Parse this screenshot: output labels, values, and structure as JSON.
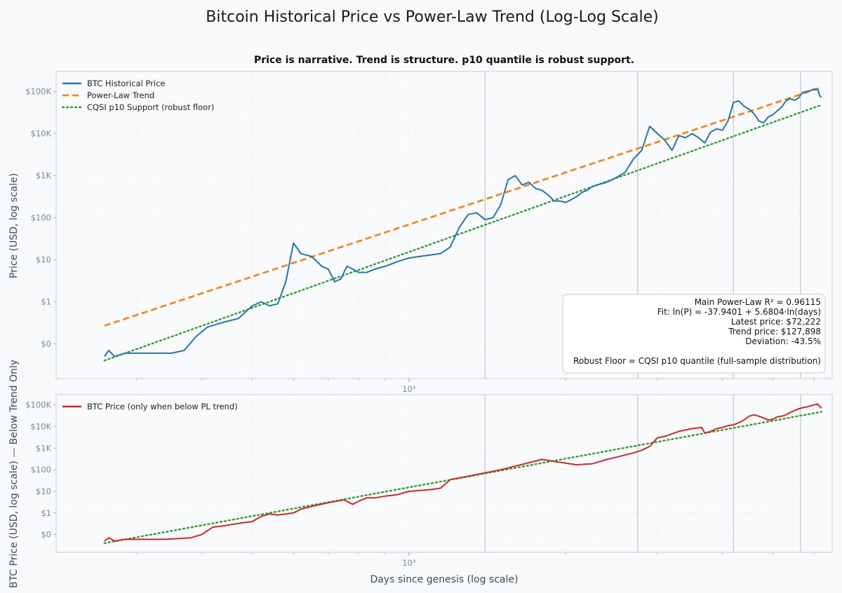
{
  "colors": {
    "btc": "#1f77b4",
    "trend": "#ff7f0e",
    "support": "#2ca02c",
    "below": "#d62728",
    "grid": "#e6e9ee",
    "spine": "#c9ced6",
    "vline": "#c0c5cc"
  },
  "chart_data": [
    {
      "type": "line",
      "title": "Bitcoin Historical Price vs Power-Law Trend (Log-Log Scale)",
      "subtitle": "Price is narrative. Trend is structure. p10 quantile is robust support.",
      "xscale": "log",
      "yscale": "log",
      "xlim": [
        210,
        6500
      ],
      "ylim": [
        0.015,
        300000
      ],
      "ylabel": "Price (USD, log scale)",
      "ytick_values": [
        0.1,
        1,
        10,
        100,
        1000,
        10000,
        100000
      ],
      "ytick_labels": [
        "$0",
        "$1",
        "$10",
        "$100",
        "$1K",
        "$10K",
        "$100K"
      ],
      "xtick_values": [
        1000
      ],
      "xtick_labels": [
        "10³"
      ],
      "vlines": [
        1400,
        2750,
        4200,
        5650
      ],
      "legend": [
        {
          "label": "BTC Historical Price",
          "style": "solid",
          "color_key": "btc"
        },
        {
          "label": "Power-Law Trend",
          "style": "dashed",
          "color_key": "trend"
        },
        {
          "label": "CQSI p10 Support (robust floor)",
          "style": "dotted",
          "color_key": "support"
        }
      ],
      "annotation_lines": [
        "Main Power-Law  R² = 0.96115",
        "Fit: ln(P) = -37.9401 + 5.6804·ln(days)",
        "Latest price: $72,222",
        "Trend price: $127,898",
        "Deviation: -43.5%",
        "",
        "Robust Floor = CQSI p10 quantile (full-sample distribution)"
      ],
      "trend": {
        "x": [
          260,
          6200
        ],
        "y": [
          0.27,
          125000
        ]
      },
      "support": {
        "x": [
          260,
          6200
        ],
        "y": [
          0.04,
          48000
        ]
      },
      "series": [
        {
          "name": "BTC Historical Price",
          "color_key": "btc",
          "x": [
            260,
            265,
            272,
            285,
            300,
            320,
            330,
            340,
            350,
            370,
            390,
            410,
            430,
            450,
            470,
            500,
            520,
            540,
            560,
            580,
            600,
            620,
            650,
            680,
            700,
            720,
            740,
            760,
            780,
            800,
            830,
            860,
            900,
            950,
            1000,
            1050,
            1100,
            1150,
            1200,
            1250,
            1300,
            1350,
            1400,
            1450,
            1500,
            1550,
            1600,
            1650,
            1700,
            1750,
            1800,
            1850,
            1900,
            1950,
            2000,
            2050,
            2100,
            2150,
            2200,
            2250,
            2300,
            2400,
            2500,
            2600,
            2700,
            2800,
            2900,
            3000,
            3100,
            3200,
            3300,
            3400,
            3500,
            3600,
            3700,
            3800,
            3900,
            4000,
            4100,
            4200,
            4300,
            4400,
            4500,
            4600,
            4700,
            4800,
            4900,
            5000,
            5100,
            5200,
            5300,
            5400,
            5500,
            5600,
            5700,
            5800,
            5900,
            6000,
            6100,
            6150,
            6200
          ],
          "y": [
            0.05,
            0.07,
            0.05,
            0.06,
            0.06,
            0.06,
            0.06,
            0.06,
            0.06,
            0.07,
            0.15,
            0.25,
            0.3,
            0.35,
            0.4,
            0.8,
            1.0,
            0.8,
            0.9,
            3.0,
            25.0,
            14.0,
            12.0,
            7.0,
            6.0,
            3.0,
            3.5,
            7.0,
            6.0,
            5.0,
            5.0,
            6.0,
            7.0,
            9.0,
            11.0,
            12.0,
            13.0,
            14.0,
            20.0,
            60.0,
            120.0,
            130.0,
            90.0,
            100.0,
            200.0,
            800.0,
            1000.0,
            600.0,
            700.0,
            500.0,
            450.0,
            350.0,
            250.0,
            250.0,
            230.0,
            270.0,
            320.0,
            400.0,
            450.0,
            550.0,
            600.0,
            700.0,
            900.0,
            1200.0,
            2500.0,
            4000.0,
            15000.0,
            10000.0,
            7000.0,
            4000.0,
            9000.0,
            8000.0,
            10000.0,
            8000.0,
            6000.0,
            11000.0,
            13000.0,
            12000.0,
            20000.0,
            55000.0,
            60000.0,
            45000.0,
            38000.0,
            30000.0,
            20000.0,
            18000.0,
            25000.0,
            28000.0,
            35000.0,
            43000.0,
            60000.0,
            68000.0,
            62000.0,
            70000.0,
            95000.0,
            100000.0,
            105000.0,
            115000.0,
            110000.0,
            80000.0,
            72222.0
          ]
        }
      ]
    },
    {
      "type": "line",
      "xscale": "log",
      "yscale": "log",
      "xlim": [
        210,
        6500
      ],
      "ylim": [
        0.015,
        300000
      ],
      "ylabel": "BTC Price (USD, log scale) — Below Trend Only",
      "xlabel": "Days since genesis (log scale)",
      "ytick_values": [
        0.1,
        1,
        10,
        100,
        1000,
        10000,
        100000
      ],
      "ytick_labels": [
        "$0",
        "$1",
        "$10",
        "$100",
        "$1K",
        "$10K",
        "$100K"
      ],
      "xtick_values": [
        1000
      ],
      "xtick_labels": [
        "10³"
      ],
      "vlines": [
        1400,
        2750,
        4200,
        5650
      ],
      "legend": [
        {
          "label": "BTC Price (only when below PL trend)",
          "style": "solid",
          "color_key": "below"
        }
      ],
      "support": {
        "x": [
          260,
          6200
        ],
        "y": [
          0.04,
          48000
        ]
      },
      "series": [
        {
          "name": "BTC Price (only when below PL trend)",
          "color_key": "below",
          "x": [
            260,
            265,
            272,
            285,
            300,
            320,
            340,
            360,
            380,
            400,
            420,
            440,
            460,
            480,
            500,
            520,
            540,
            560,
            600,
            620,
            650,
            700,
            750,
            780,
            800,
            830,
            860,
            900,
            950,
            1000,
            1050,
            1100,
            1150,
            1200,
            1300,
            1500,
            1800,
            2100,
            2250,
            2300,
            2400,
            2500,
            2600,
            2700,
            2800,
            2900,
            3000,
            3100,
            3300,
            3500,
            3650,
            3700,
            3800,
            3900,
            4000,
            4100,
            4200,
            4300,
            4400,
            4500,
            4600,
            4700,
            4800,
            4900,
            5000,
            5100,
            5200,
            5300,
            5400,
            5500,
            5600,
            5700,
            5800,
            5900,
            6000,
            6100,
            6150,
            6200
          ],
          "y": [
            0.05,
            0.07,
            0.05,
            0.06,
            0.06,
            0.06,
            0.06,
            0.065,
            0.07,
            0.1,
            0.22,
            0.25,
            0.3,
            0.35,
            0.4,
            0.7,
            0.9,
            0.8,
            1.0,
            1.5,
            2.0,
            3.0,
            4.0,
            2.5,
            3.5,
            5.0,
            5.0,
            6.0,
            7.0,
            10.0,
            11.0,
            12.0,
            14.0,
            35.0,
            50.0,
            100.0,
            300.0,
            170.0,
            190.0,
            220.0,
            300.0,
            380.0,
            480.0,
            600.0,
            800.0,
            1200.0,
            3000.0,
            3500.0,
            6000.0,
            8000.0,
            9000.0,
            5000.0,
            6000.0,
            8000.0,
            9000.0,
            11000.0,
            12000.0,
            15000.0,
            20000.0,
            30000.0,
            35000.0,
            30000.0,
            25000.0,
            20000.0,
            22000.0,
            28000.0,
            30000.0,
            35000.0,
            45000.0,
            55000.0,
            65000.0,
            75000.0,
            80000.0,
            90000.0,
            100000.0,
            110000.0,
            85000.0,
            72222.0
          ]
        }
      ]
    }
  ]
}
